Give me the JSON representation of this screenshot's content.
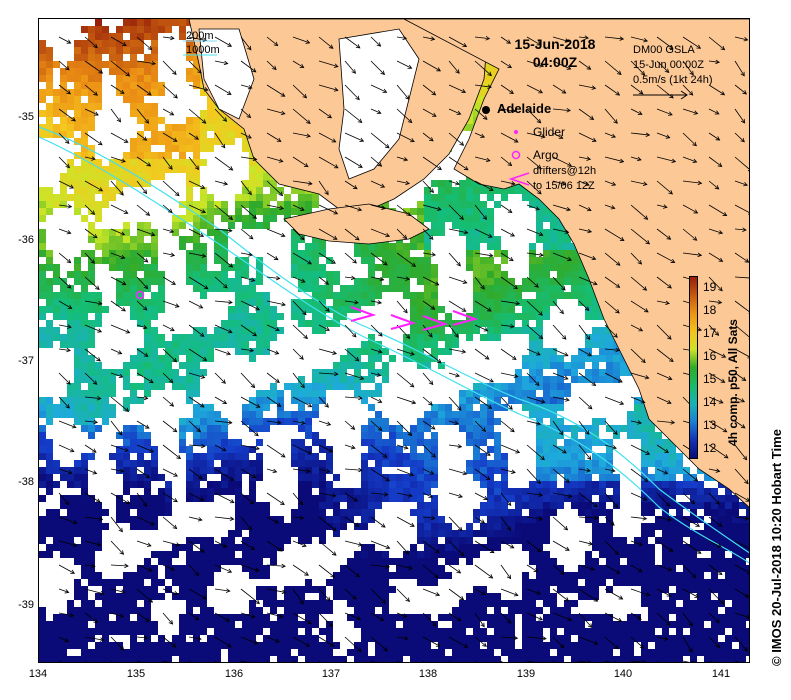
{
  "title_date": "15-Jun-2018",
  "title_time": "04:00Z",
  "bathy_legend": {
    "line1": "200m",
    "line2": "1000m"
  },
  "gsla": {
    "line1": "DM00 GSLA",
    "line2": "15-Jun 00:00Z",
    "line3": "0.5m/s (1kt 24h)"
  },
  "markers": {
    "adelaide": "Adelaide",
    "glider": "Glider",
    "argo": "Argo",
    "drifters_line1": "drifters@12h",
    "drifters_line2": "to 15/06 12Z"
  },
  "x_ticks": [
    "134",
    "135",
    "136",
    "137",
    "138",
    "139",
    "140",
    "141"
  ],
  "y_ticks": [
    "-35",
    "-36",
    "-37",
    "-38",
    "-39"
  ],
  "colorbar": {
    "title": "4h comp. p50, All Sats",
    "ticks": [
      "19",
      "18",
      "17",
      "16",
      "15",
      "14",
      "13",
      "12"
    ],
    "min": 11.5,
    "max": 19.5
  },
  "credit": "© IMOS 20-Jul-2018 10:20 Hobart Time",
  "colors": {
    "land": "#fcc896",
    "shelf_line": "#40e0f0",
    "marker": "#ff22ff"
  }
}
